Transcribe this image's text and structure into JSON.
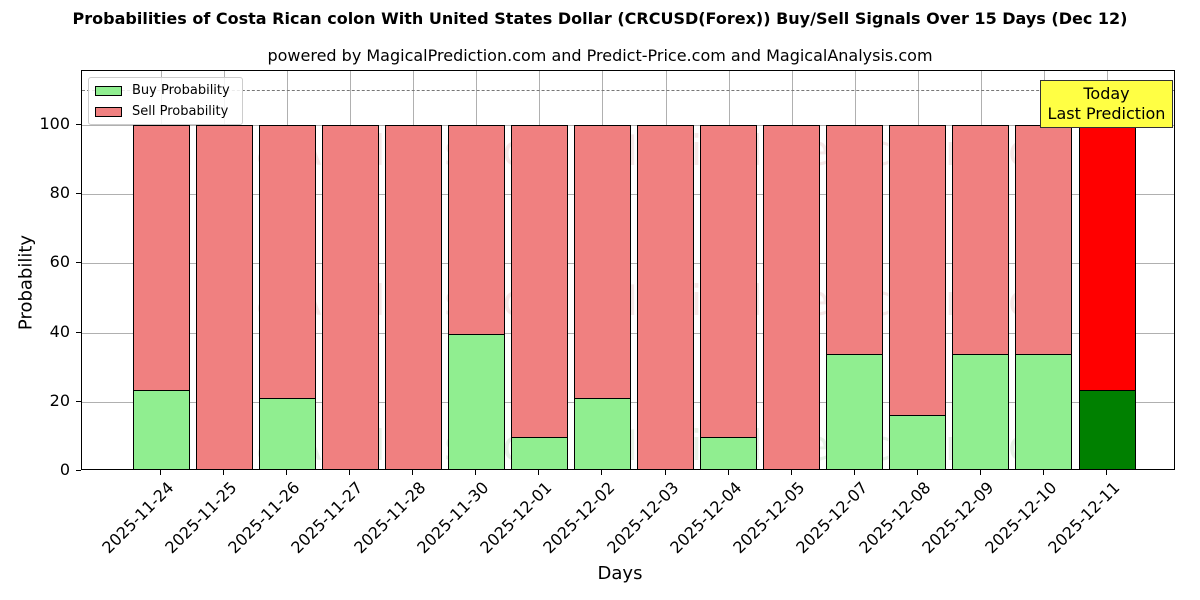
{
  "header": {
    "title": "Probabilities of Costa Rican colon With United States Dollar (CRCUSD(Forex)) Buy/Sell Signals Over 15 Days (Dec 12)",
    "subtitle": "powered by MagicalPrediction.com and Predict-Price.com and MagicalAnalysis.com"
  },
  "legend": {
    "buy_label": "Buy Probability",
    "sell_label": "Sell Probability"
  },
  "annotation": {
    "line1": "Today",
    "line2": "Last Prediction"
  },
  "watermarks": [
    "MagicalAnalysis.com",
    "MagicalPrediction.com"
  ],
  "colors": {
    "buy": "#90ee90",
    "sell": "#f08080",
    "today_buy": "#008000",
    "today_sell": "#ff0000",
    "annotation_bg": "#ffff44"
  },
  "chart_data": {
    "type": "bar",
    "stacked": true,
    "title": "Probabilities of Costa Rican colon With United States Dollar (CRCUSD(Forex)) Buy/Sell Signals Over 15 Days (Dec 12)",
    "subtitle": "powered by MagicalPrediction.com and Predict-Price.com and MagicalAnalysis.com",
    "xlabel": "Days",
    "ylabel": "Probability",
    "ylim": [
      0,
      115
    ],
    "yticks": [
      0,
      20,
      40,
      60,
      80,
      100
    ],
    "grid": true,
    "legend_position": "upper left",
    "reference_line": {
      "y": 110,
      "style": "dashed"
    },
    "categories": [
      "2025-11-24",
      "2025-11-25",
      "2025-11-26",
      "2025-11-27",
      "2025-11-28",
      "2025-11-30",
      "2025-12-01",
      "2025-12-02",
      "2025-12-03",
      "2025-12-04",
      "2025-12-05",
      "2025-12-07",
      "2025-12-08",
      "2025-12-09",
      "2025-12-10",
      "2025-12-11"
    ],
    "series": [
      {
        "name": "Buy Probability",
        "values": [
          23.3,
          0,
          21.0,
          0,
          0,
          39.7,
          9.7,
          21.0,
          0,
          9.7,
          0,
          33.7,
          16.3,
          33.7,
          33.7,
          23.3
        ]
      },
      {
        "name": "Sell Probability",
        "values": [
          76.7,
          100,
          79.0,
          100,
          100,
          60.3,
          90.3,
          79.0,
          100,
          90.3,
          100,
          66.3,
          83.7,
          66.3,
          66.3,
          76.7
        ]
      }
    ],
    "annotations": [
      {
        "text": "Today\nLast Prediction",
        "x": "2025-12-11"
      }
    ]
  }
}
